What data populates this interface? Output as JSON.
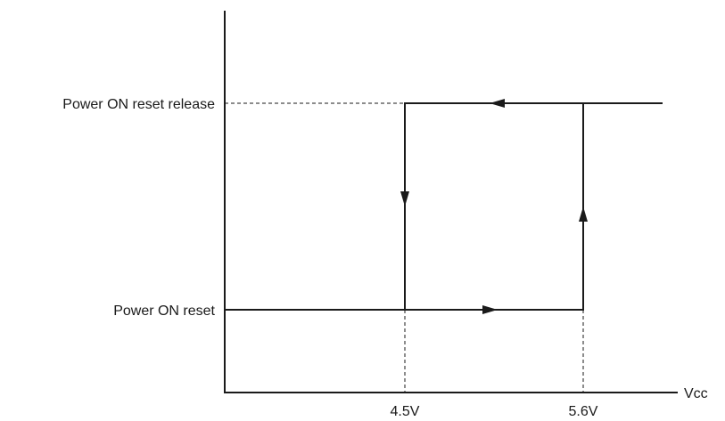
{
  "levels": {
    "high": "Power ON reset release",
    "low": "Power ON reset"
  },
  "x_axis": {
    "label": "Vcc",
    "ticks": [
      "4.5V",
      "5.6V"
    ]
  }
}
